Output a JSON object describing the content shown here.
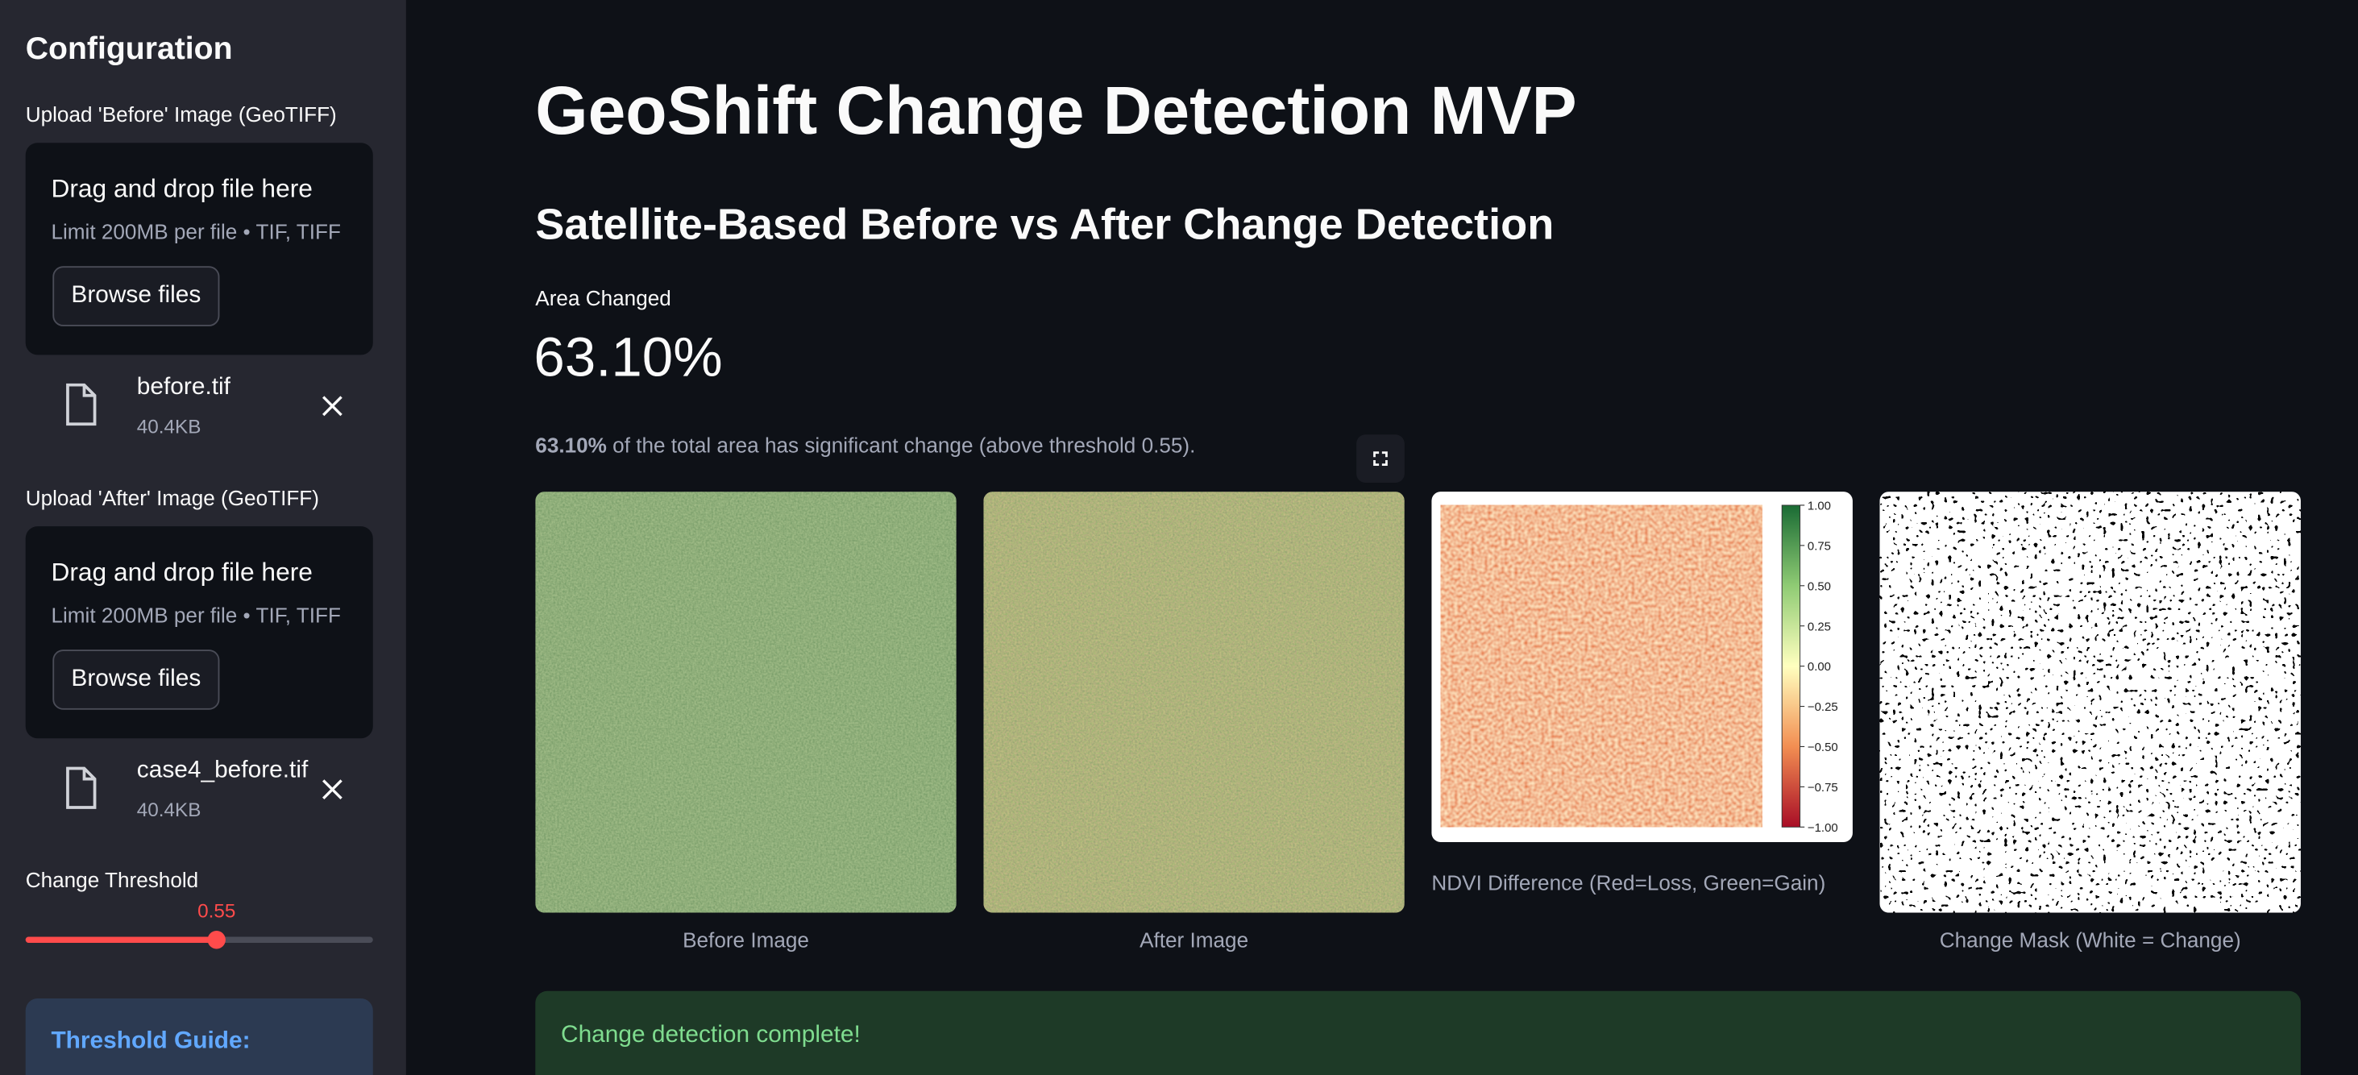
{
  "sidebar": {
    "title": "Configuration",
    "uploads": [
      {
        "label": "Upload 'Before' Image (GeoTIFF)",
        "dropzone_title": "Drag and drop file here",
        "limit": "Limit 200MB per file • TIF, TIFF",
        "button": "Browse files",
        "file": {
          "name": "before.tif",
          "size": "40.4KB"
        }
      },
      {
        "label": "Upload 'After' Image (GeoTIFF)",
        "dropzone_title": "Drag and drop file here",
        "limit": "Limit 200MB per file • TIF, TIFF",
        "button": "Browse files",
        "file": {
          "name": "case4_before.tif",
          "size": "40.4KB"
        }
      }
    ],
    "threshold": {
      "label": "Change Threshold",
      "value": 0.55
    },
    "guide_title": "Threshold Guide:"
  },
  "main": {
    "title": "GeoShift Change Detection MVP",
    "subtitle": "Satellite-Based Before vs After Change Detection",
    "metric": {
      "label": "Area Changed",
      "value": "63.10%"
    },
    "caption": {
      "bold": "63.10%",
      "text": " of the total area has significant change (above threshold 0.55)."
    },
    "images": [
      {
        "caption": "Before Image"
      },
      {
        "caption": "After Image"
      },
      {
        "caption": "NDVI Difference (Red=Loss, Green=Gain)"
      },
      {
        "caption": "Change Mask (White = Change)"
      }
    ],
    "colorbar_ticks": [
      "1.00",
      "0.75",
      "0.50",
      "0.25",
      "0.00",
      "−0.25",
      "−0.50",
      "−0.75",
      "−1.00"
    ],
    "success": "Change detection complete!"
  }
}
